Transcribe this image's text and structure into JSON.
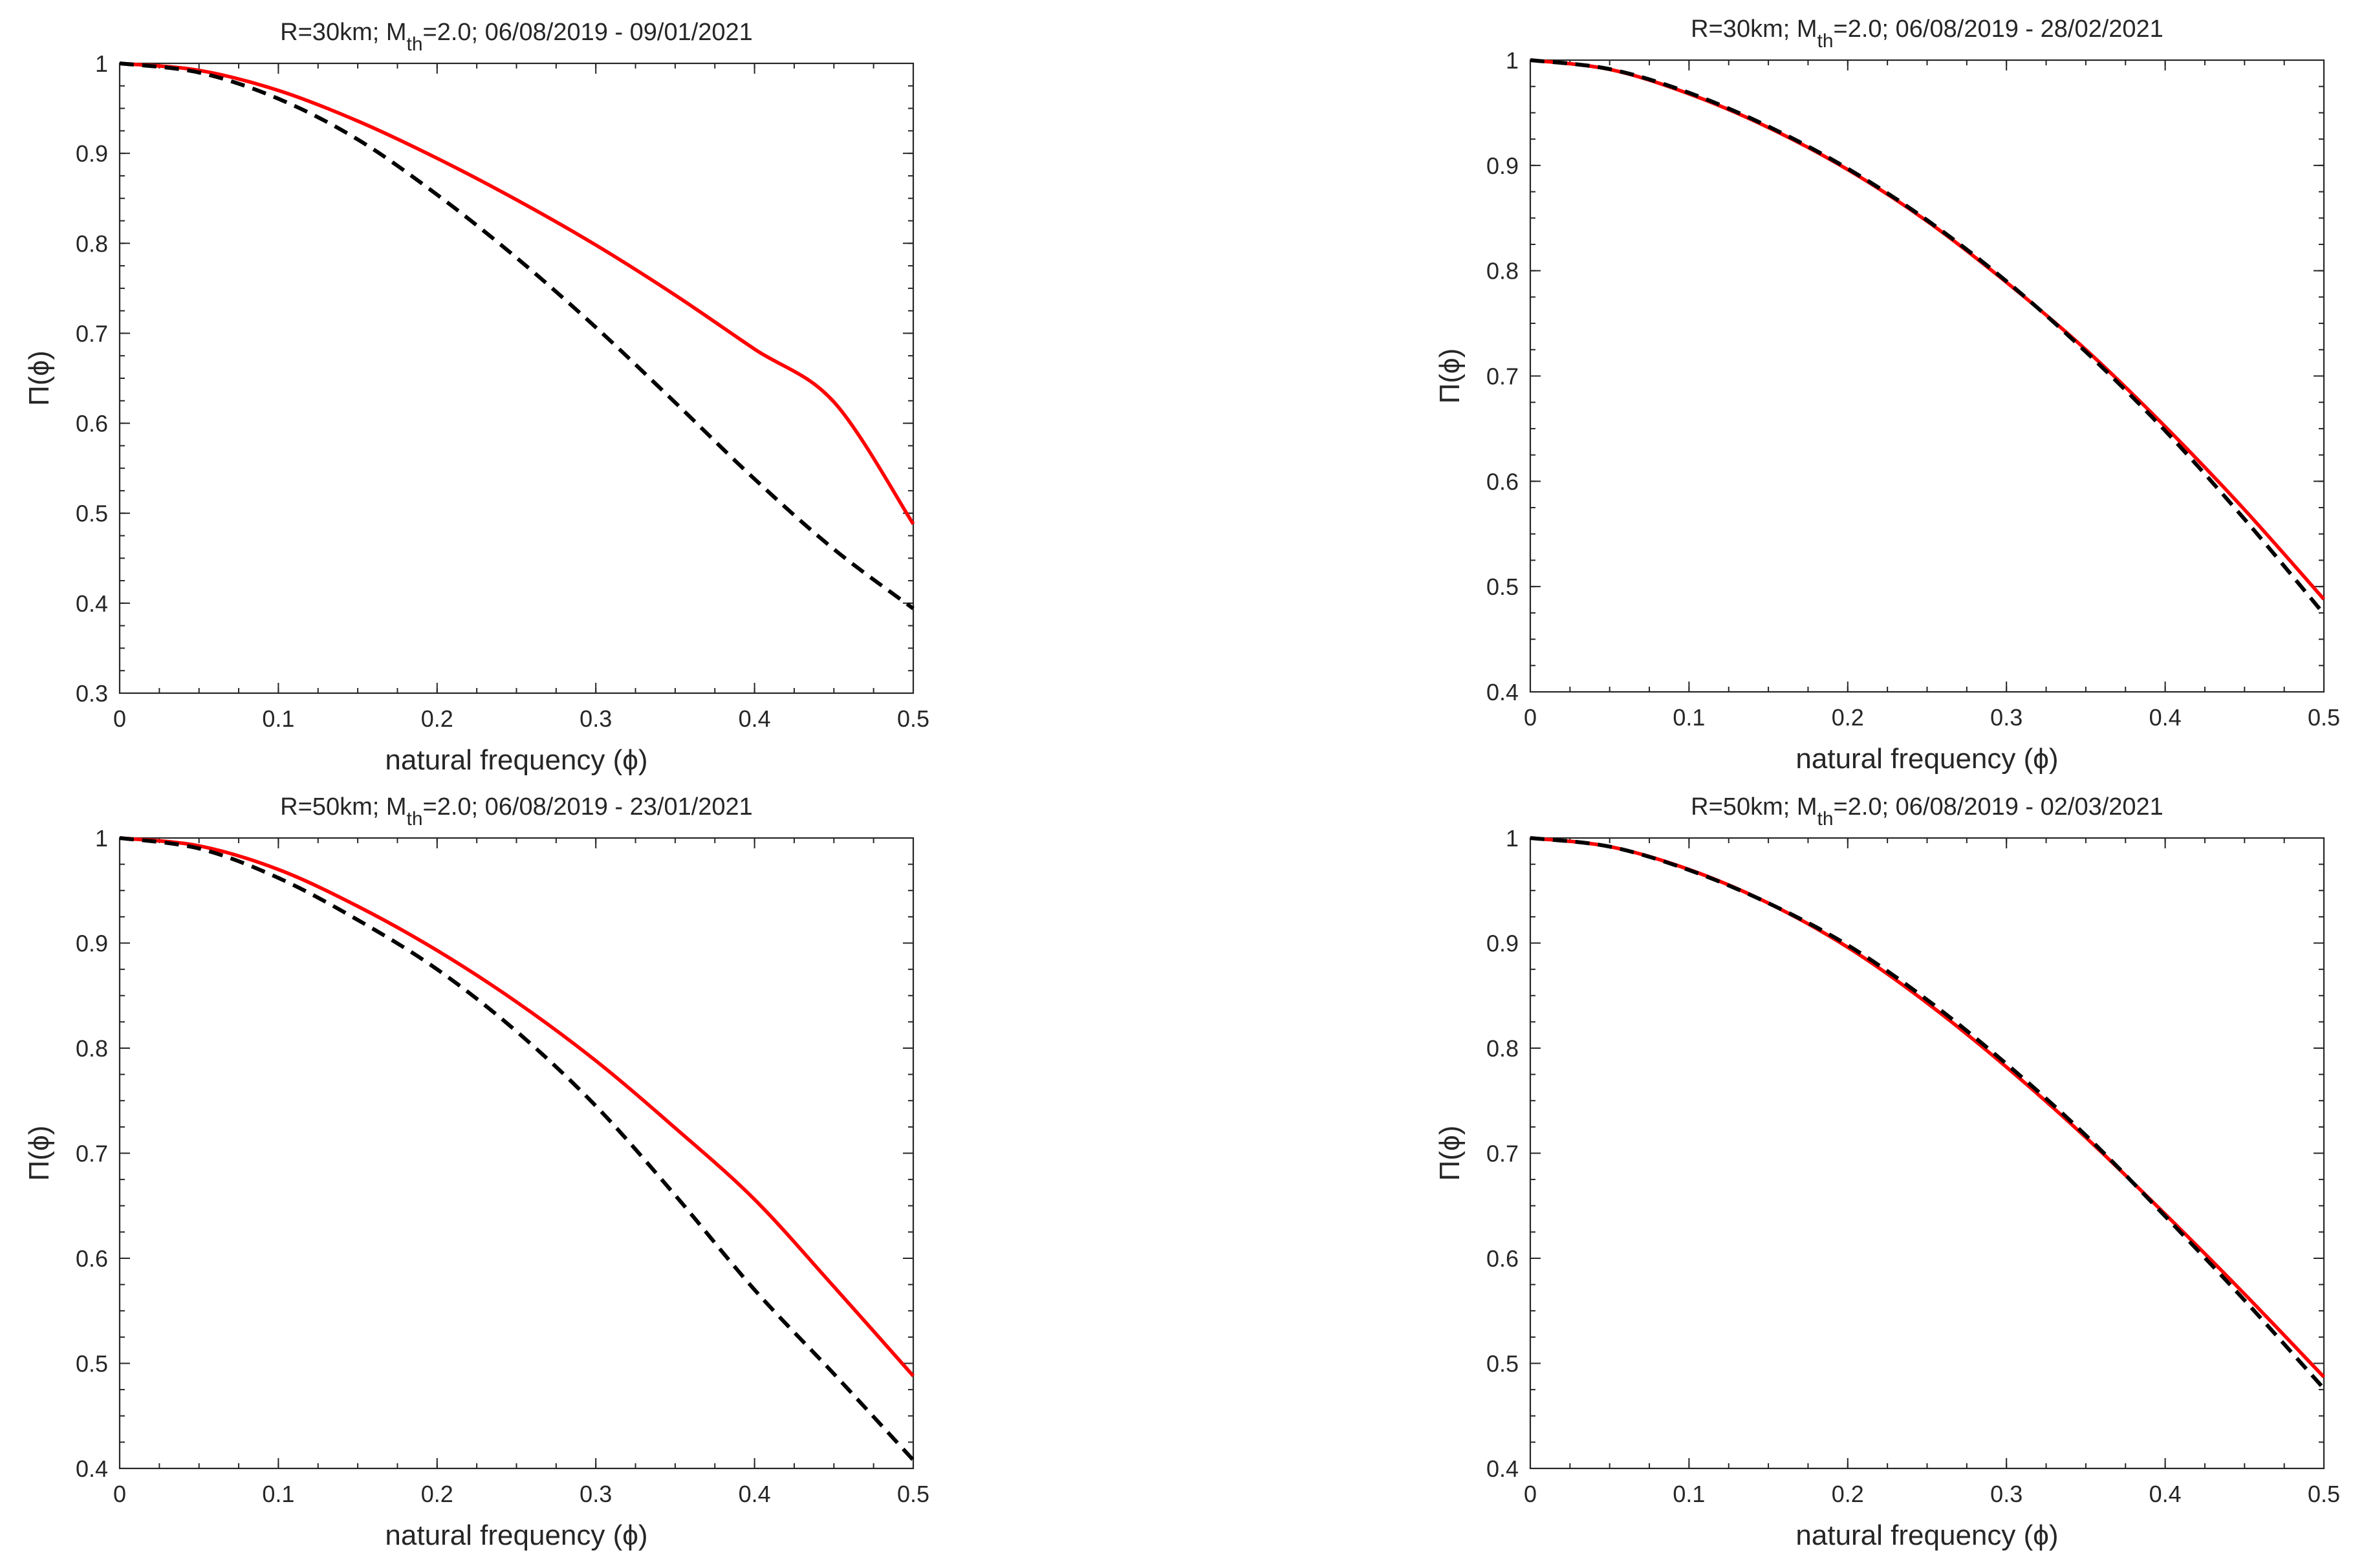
{
  "figure": {
    "background_color": "#ffffff",
    "axis_color": "#262626"
  },
  "chart_data": [
    {
      "type": "line",
      "title_parts": {
        "prefix": "R=30km; M",
        "subscript": "th",
        "suffix": "=2.0; 06/08/2019 - 09/01/2021"
      },
      "xlabel": "natural frequency (ϕ)",
      "ylabel": "Π(ϕ)",
      "xlim": [
        0,
        0.5
      ],
      "ylim": [
        0.3,
        1
      ],
      "xticks": [
        0,
        0.1,
        0.2,
        0.3,
        0.4,
        0.5
      ],
      "xtick_labels": [
        "0",
        "0.1",
        "0.2",
        "0.3",
        "0.4",
        "0.5"
      ],
      "yticks": [
        0.3,
        0.4,
        0.5,
        0.6,
        0.7,
        0.8,
        0.9,
        1
      ],
      "ytick_labels": [
        "0.3",
        "0.4",
        "0.5",
        "0.6",
        "0.7",
        "0.8",
        "0.9",
        "1"
      ],
      "x": [
        0,
        0.05,
        0.1,
        0.15,
        0.2,
        0.25,
        0.3,
        0.35,
        0.4,
        0.45,
        0.5
      ],
      "series": [
        {
          "name": "red solid",
          "color": "#ff0000",
          "style": "solid",
          "values": [
            1.0,
            0.9922,
            0.9699,
            0.9359,
            0.8945,
            0.8484,
            0.7981,
            0.7424,
            0.6824,
            0.6237,
            0.488
          ]
        },
        {
          "name": "black dashed",
          "color": "#000000",
          "style": "dashed",
          "values": [
            1.0,
            0.9898,
            0.9607,
            0.9154,
            0.854,
            0.784,
            0.7066,
            0.623,
            0.538,
            0.46,
            0.394
          ]
        }
      ]
    },
    {
      "type": "line",
      "title_parts": {
        "prefix": "R=30km; M",
        "subscript": "th",
        "suffix": "=2.0; 06/08/2019 - 28/02/2021"
      },
      "xlabel": "natural frequency (ϕ)",
      "ylabel": "Π(ϕ)",
      "xlim": [
        0,
        0.5
      ],
      "ylim": [
        0.4,
        1
      ],
      "xticks": [
        0,
        0.1,
        0.2,
        0.3,
        0.4,
        0.5
      ],
      "xtick_labels": [
        "0",
        "0.1",
        "0.2",
        "0.3",
        "0.4",
        "0.5"
      ],
      "yticks": [
        0.4,
        0.5,
        0.6,
        0.7,
        0.8,
        0.9,
        1
      ],
      "ytick_labels": [
        "0.4",
        "0.5",
        "0.6",
        "0.7",
        "0.8",
        "0.9",
        "1"
      ],
      "x": [
        0,
        0.05,
        0.1,
        0.15,
        0.2,
        0.25,
        0.3,
        0.35,
        0.4,
        0.45,
        0.5
      ],
      "series": [
        {
          "name": "red solid",
          "color": "#ff0000",
          "style": "solid",
          "values": [
            1.0,
            0.9912,
            0.968,
            0.936,
            0.896,
            0.847,
            0.789,
            0.725,
            0.652,
            0.573,
            0.488
          ]
        },
        {
          "name": "black dashed",
          "color": "#000000",
          "style": "dashed",
          "values": [
            1.0,
            0.9915,
            0.969,
            0.937,
            0.897,
            0.848,
            0.79,
            0.723,
            0.648,
            0.564,
            0.474
          ]
        }
      ]
    },
    {
      "type": "line",
      "title_parts": {
        "prefix": "R=50km; M",
        "subscript": "th",
        "suffix": "=2.0; 06/08/2019 - 23/01/2021"
      },
      "xlabel": "natural frequency (ϕ)",
      "ylabel": "Π(ϕ)",
      "xlim": [
        0,
        0.5
      ],
      "ylim": [
        0.4,
        1
      ],
      "xticks": [
        0,
        0.1,
        0.2,
        0.3,
        0.4,
        0.5
      ],
      "xtick_labels": [
        "0",
        "0.1",
        "0.2",
        "0.3",
        "0.4",
        "0.5"
      ],
      "yticks": [
        0.4,
        0.5,
        0.6,
        0.7,
        0.8,
        0.9,
        1
      ],
      "ytick_labels": [
        "0.4",
        "0.5",
        "0.6",
        "0.7",
        "0.8",
        "0.9",
        "1"
      ],
      "x": [
        0,
        0.05,
        0.1,
        0.15,
        0.2,
        0.25,
        0.3,
        0.35,
        0.4,
        0.45,
        0.5
      ],
      "series": [
        {
          "name": "red solid",
          "color": "#ff0000",
          "style": "solid",
          "values": [
            1.0,
            0.9925,
            0.97,
            0.935,
            0.893,
            0.844,
            0.788,
            0.724,
            0.656,
            0.573,
            0.488
          ]
        },
        {
          "name": "black dashed",
          "color": "#000000",
          "style": "dashed",
          "values": [
            1.0,
            0.99,
            0.962,
            0.922,
            0.875,
            0.816,
            0.745,
            0.66,
            0.57,
            0.49,
            0.408
          ]
        }
      ]
    },
    {
      "type": "line",
      "title_parts": {
        "prefix": "R=50km; M",
        "subscript": "th",
        "suffix": "=2.0; 06/08/2019 - 02/03/2021"
      },
      "xlabel": "natural frequency (ϕ)",
      "ylabel": "Π(ϕ)",
      "xlim": [
        0,
        0.5
      ],
      "ylim": [
        0.4,
        1
      ],
      "xticks": [
        0,
        0.1,
        0.2,
        0.3,
        0.4,
        0.5
      ],
      "xtick_labels": [
        "0",
        "0.1",
        "0.2",
        "0.3",
        "0.4",
        "0.5"
      ],
      "yticks": [
        0.4,
        0.5,
        0.6,
        0.7,
        0.8,
        0.9,
        1
      ],
      "ytick_labels": [
        "0.4",
        "0.5",
        "0.6",
        "0.7",
        "0.8",
        "0.9",
        "1"
      ],
      "x": [
        0,
        0.05,
        0.1,
        0.15,
        0.2,
        0.25,
        0.3,
        0.35,
        0.4,
        0.45,
        0.5
      ],
      "series": [
        {
          "name": "red solid",
          "color": "#ff0000",
          "style": "solid",
          "values": [
            1.0,
            0.9918,
            0.97,
            0.938,
            0.896,
            0.843,
            0.782,
            0.715,
            0.642,
            0.566,
            0.487
          ]
        },
        {
          "name": "black dashed",
          "color": "#000000",
          "style": "dashed",
          "values": [
            1.0,
            0.9918,
            0.9695,
            0.938,
            0.898,
            0.846,
            0.785,
            0.717,
            0.64,
            0.56,
            0.476
          ]
        }
      ]
    }
  ]
}
